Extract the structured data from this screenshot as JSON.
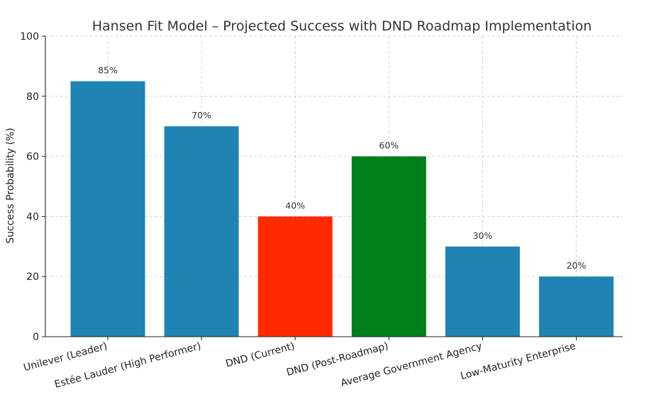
{
  "chart_data": {
    "type": "bar",
    "title": "Hansen Fit Model – Projected Success with DND Roadmap Implementation",
    "xlabel": "",
    "ylabel": "Success Probability (%)",
    "ylim": [
      0,
      100
    ],
    "yticks": [
      0,
      20,
      40,
      60,
      80,
      100
    ],
    "grid": true,
    "categories": [
      "Unilever (Leader)",
      "Estée Lauder (High Performer)",
      "DND (Current)",
      "DND (Post-Roadmap)",
      "Average Government Agency",
      "Low-Maturity Enterprise"
    ],
    "values": [
      85,
      70,
      40,
      60,
      30,
      20
    ],
    "data_labels": [
      "85%",
      "70%",
      "40%",
      "60%",
      "30%",
      "20%"
    ],
    "colors": [
      "#1f83b4",
      "#1f83b4",
      "#ff2a00",
      "#007f1a",
      "#1f83b4",
      "#1f83b4"
    ]
  }
}
